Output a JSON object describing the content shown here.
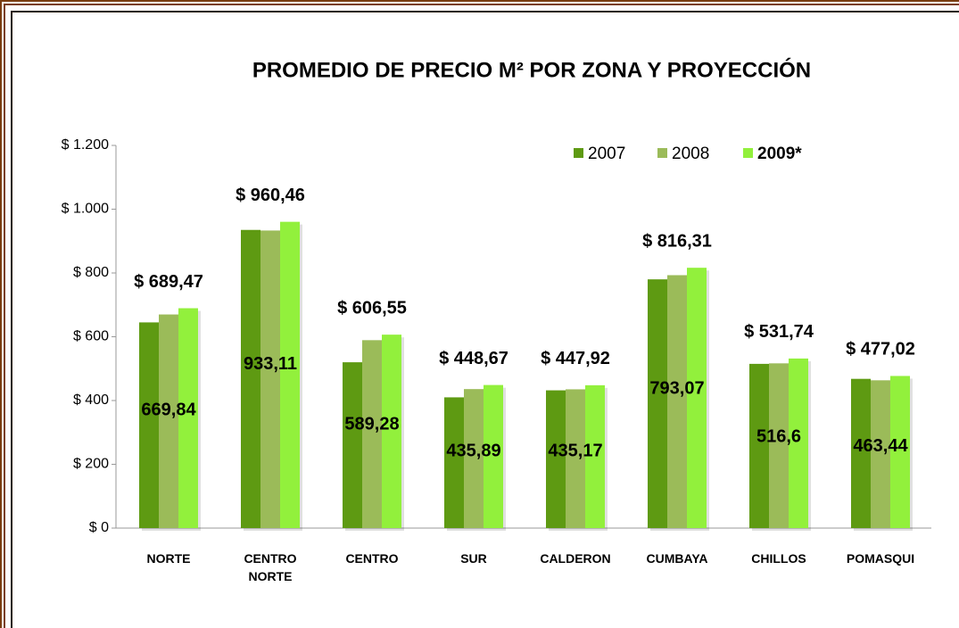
{
  "chart_data": {
    "type": "bar",
    "title": "PROMEDIO DE PRECIO M² POR ZONA  Y PROYECCIÓN",
    "categories": [
      "NORTE",
      "CENTRO NORTE",
      "CENTRO",
      "SUR",
      "CALDERON",
      "CUMBAYA",
      "CHILLOS",
      "POMASQUI"
    ],
    "series": [
      {
        "name": "2007",
        "color": "#5e9a12",
        "values": [
          645,
          935,
          520,
          410,
          432,
          780,
          515,
          468
        ]
      },
      {
        "name": "2008",
        "color": "#9bbb59",
        "values": [
          669.84,
          933.11,
          589.28,
          435.89,
          435.17,
          793.07,
          516.6,
          463.44
        ],
        "value_labels": [
          "669,84",
          "933,11",
          "589,28",
          "435,89",
          "435,17",
          "793,07",
          "516,6",
          "463,44"
        ]
      },
      {
        "name": "2009*",
        "color": "#92f03c",
        "values": [
          689.47,
          960.46,
          606.55,
          448.67,
          447.92,
          816.31,
          531.74,
          477.02
        ],
        "value_labels": [
          "$ 689,47",
          "$ 960,46",
          "$ 606,55",
          "$ 448,67",
          "$ 447,92",
          "$ 816,31",
          "$ 531,74",
          "$ 477,02"
        ]
      }
    ],
    "ylim": [
      0,
      1200
    ],
    "yticks": [
      {
        "value": 0,
        "label": "$ 0"
      },
      {
        "value": 200,
        "label": "$ 200"
      },
      {
        "value": 400,
        "label": "$ 400"
      },
      {
        "value": 600,
        "label": "$ 600"
      },
      {
        "value": 800,
        "label": "$ 800"
      },
      {
        "value": 1000,
        "label": "$ 1.000"
      },
      {
        "value": 1200,
        "label": "$ 1.200"
      }
    ],
    "legend": "top-right"
  }
}
